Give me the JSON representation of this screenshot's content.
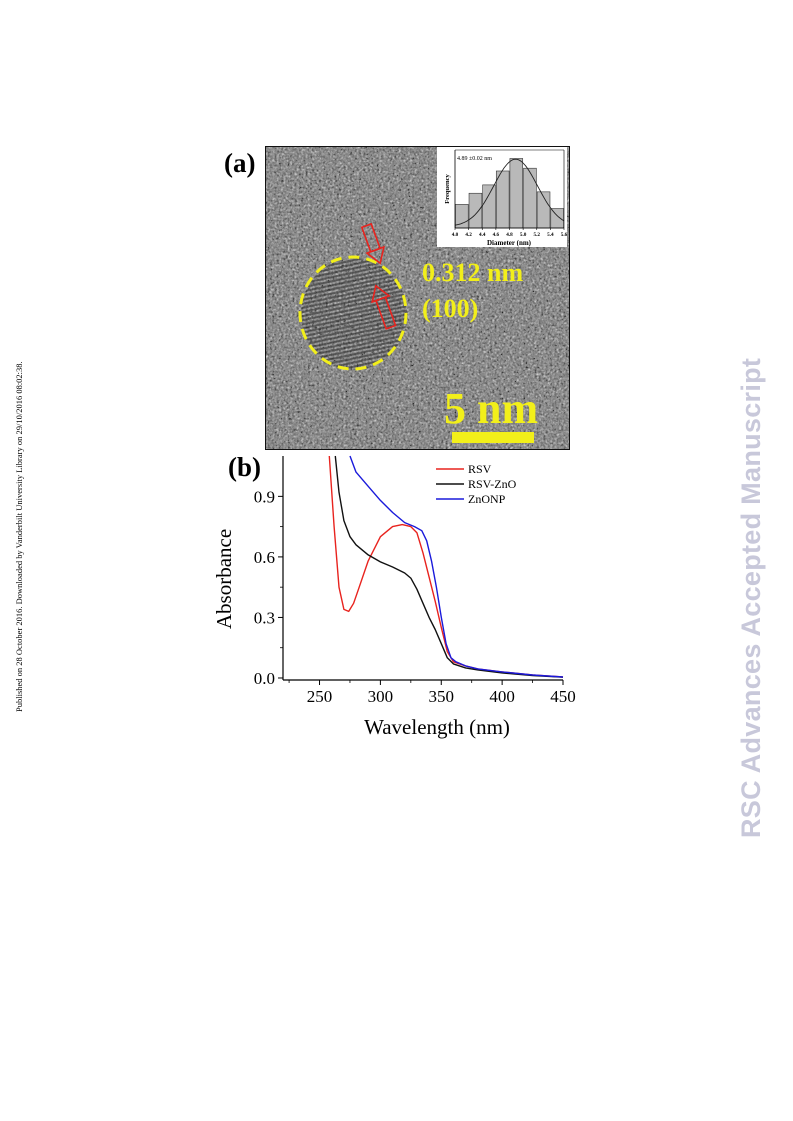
{
  "side_note": "Published on 28 October 2016. Downloaded by Vanderbilt University Library on 29/10/2016 08:02:38.",
  "watermark": "RSC Advances Accepted Manuscript",
  "panel_a": {
    "label": "(a)",
    "d_spacing": "0.312 nm",
    "plane": "(100)",
    "scale_bar_label": "5 nm",
    "inset": {
      "mean_label": "4.89 ±0.02 nm",
      "xlabel": "Diameter (nm)",
      "ylabel": "Frequency",
      "ticks": [
        "4.0",
        "4.2",
        "4.4",
        "4.6",
        "4.8",
        "5.0",
        "5.2",
        "5.4",
        "5.6"
      ]
    }
  },
  "panel_b": {
    "label": "(b)"
  },
  "colors": {
    "rsv": "#e8231e",
    "rsv_zno": "#111111",
    "znonp": "#1a1adb",
    "overlay": "#f2ef1a",
    "watermark": "#c8c8da"
  },
  "chart_data": [
    {
      "type": "bar",
      "panel": "a-inset",
      "xlabel": "Diameter (nm)",
      "ylabel": "Frequency",
      "annotation": "4.89 ±0.02 nm",
      "categories": [
        "4.1",
        "4.3",
        "4.5",
        "4.7",
        "4.9",
        "5.1",
        "5.3",
        "5.5"
      ],
      "values": [
        0.34,
        0.5,
        0.62,
        0.82,
        1.0,
        0.86,
        0.52,
        0.28
      ],
      "ylim": [
        0,
        1.05
      ],
      "xlim": [
        4.0,
        5.6
      ],
      "x_ticks": [
        "4.0",
        "4.2",
        "4.4",
        "4.6",
        "4.8",
        "5.0",
        "5.2",
        "5.4",
        "5.6"
      ],
      "fit": "gaussian"
    },
    {
      "type": "line",
      "panel": "b",
      "xlabel": "Wavelength (nm)",
      "ylabel": "Absorbance",
      "xlim": [
        220,
        450
      ],
      "ylim": [
        -0.01,
        1.1
      ],
      "x_ticks": [
        "250",
        "300",
        "350",
        "400",
        "450"
      ],
      "y_ticks": [
        "0.0",
        "0.3",
        "0.6",
        "0.9"
      ],
      "legend_position": "top-right",
      "series": [
        {
          "name": "RSV",
          "x": [
            258,
            262,
            266,
            270,
            274,
            278,
            282,
            290,
            300,
            310,
            318,
            325,
            330,
            335,
            340,
            345,
            350,
            355,
            360,
            370,
            380,
            400,
            425,
            450
          ],
          "y": [
            1.1,
            0.75,
            0.45,
            0.34,
            0.33,
            0.37,
            0.44,
            0.58,
            0.7,
            0.75,
            0.76,
            0.75,
            0.72,
            0.62,
            0.5,
            0.38,
            0.25,
            0.13,
            0.08,
            0.06,
            0.045,
            0.03,
            0.015,
            0.005
          ]
        },
        {
          "name": "RSV-ZnO",
          "x": [
            263,
            266,
            270,
            275,
            280,
            290,
            300,
            310,
            320,
            325,
            330,
            335,
            340,
            345,
            350,
            355,
            360,
            370,
            380,
            400,
            425,
            450
          ],
          "y": [
            1.1,
            0.92,
            0.78,
            0.7,
            0.66,
            0.61,
            0.575,
            0.55,
            0.52,
            0.495,
            0.44,
            0.37,
            0.3,
            0.24,
            0.17,
            0.1,
            0.07,
            0.05,
            0.04,
            0.025,
            0.012,
            0.004
          ]
        },
        {
          "name": "ZnONP",
          "x": [
            275,
            280,
            290,
            300,
            310,
            320,
            328,
            334,
            338,
            342,
            346,
            350,
            354,
            358,
            362,
            370,
            380,
            400,
            425,
            450
          ],
          "y": [
            1.1,
            1.02,
            0.95,
            0.88,
            0.82,
            0.77,
            0.75,
            0.73,
            0.68,
            0.58,
            0.45,
            0.3,
            0.17,
            0.1,
            0.08,
            0.06,
            0.045,
            0.03,
            0.015,
            0.005
          ]
        }
      ]
    }
  ]
}
